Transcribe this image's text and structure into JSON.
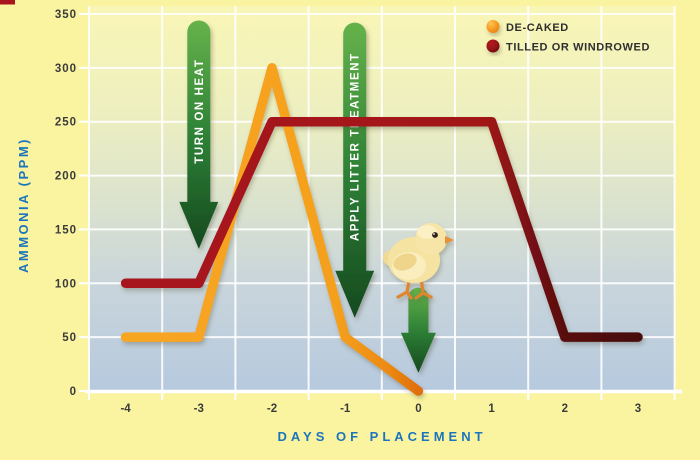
{
  "colors": {
    "background": "#FAF4A1",
    "plot_gradient_top": "#F9F6B5",
    "plot_gradient_bottom": "#B6C9DE",
    "gridline": "#FFFFFF",
    "axis_title_blue": "#1C75BC",
    "tick_label": "#3B3B3B",
    "legend_text": "#2E2E2E",
    "de_caked_orange": "#F5A01E",
    "tilled_red": "#A7141B",
    "tilled_red_dark_end": "#470D0E",
    "arrow_green_top": "#66B24B",
    "arrow_green_bottom": "#15491F",
    "arrow_text": "#FFFFFF",
    "artifact_red": "#A9131B"
  },
  "chart_data": {
    "type": "line",
    "title": "",
    "xlabel": "DAYS OF PLACEMENT",
    "ylabel": "AMMONIA (PPM)",
    "xlim": [
      -4.5,
      3.5
    ],
    "ylim": [
      0,
      350
    ],
    "x_ticks": [
      -4,
      -3,
      -2,
      -1,
      0,
      1,
      2,
      3
    ],
    "y_ticks": [
      0,
      50,
      100,
      150,
      200,
      250,
      300,
      350
    ],
    "grid": true,
    "legend_position": "top-right",
    "series": [
      {
        "name": "DE-CAKED",
        "color": "#F5A01E",
        "points": [
          [
            -4,
            50
          ],
          [
            -3,
            50
          ],
          [
            -2,
            300
          ],
          [
            -1,
            50
          ],
          [
            0,
            0
          ]
        ],
        "gradient_stops": [
          [
            0,
            "#F7A622"
          ],
          [
            0.72,
            "#F5A01E"
          ],
          [
            0.9,
            "#EC8912"
          ],
          [
            1,
            "#DF6F0A"
          ]
        ]
      },
      {
        "name": "TILLED OR WINDROWED",
        "color": "#A7141B",
        "points": [
          [
            -4,
            100
          ],
          [
            -3,
            100
          ],
          [
            -2,
            250
          ],
          [
            1,
            250
          ],
          [
            2,
            50
          ],
          [
            3,
            50
          ]
        ],
        "gradient_stops": [
          [
            0,
            "#A7141B"
          ],
          [
            0.7,
            "#A21319"
          ],
          [
            0.86,
            "#57100F"
          ],
          [
            1,
            "#470D0E"
          ]
        ]
      }
    ],
    "annotations": [
      {
        "type": "arrow-down",
        "label": "TURN ON HEAT",
        "x": -3,
        "from_ppm": 344,
        "to_ppm": 132,
        "size": "large"
      },
      {
        "type": "arrow-down",
        "label": "APPLY LITTER TREATMENT",
        "x": -0.87,
        "from_ppm": 342,
        "to_ppm": 68,
        "size": "large"
      },
      {
        "type": "arrow-down",
        "label": "",
        "x": 0,
        "from_ppm": 96,
        "to_ppm": 17,
        "size": "small"
      },
      {
        "type": "image",
        "label": "chick standing on small arrow",
        "x": 0,
        "ppm": 120
      }
    ]
  }
}
